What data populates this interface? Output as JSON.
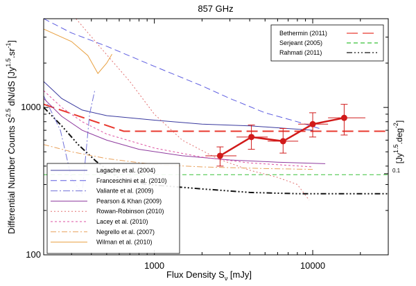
{
  "chart_data": {
    "type": "line",
    "title": "857 GHz",
    "xlabel": {
      "main": "Flux Density S",
      "sub": "ν",
      "unit": " [mJy]"
    },
    "ylabel": "Differential Number Counts S^2.5 dN/dS [Jy^1.5.sr^-1]",
    "ylabel_parts": {
      "main": "Differential Number Counts S",
      "sup1": "2.5",
      "mid": " dN/dS [Jy",
      "sup2": "1.5",
      "mid2": ".sr",
      "sup3": "-1",
      "end": "]"
    },
    "right_ylabel_parts": {
      "a": "[Jy",
      "sup1": "1.5",
      "b": ".deg",
      "sup2": "-2",
      "c": "]"
    },
    "right_tick": "0.1",
    "x_scale": "log",
    "y_scale": "log",
    "xlim": [
      200,
      30000
    ],
    "ylim": [
      100,
      4000
    ],
    "x_ticks": [
      {
        "value": 1000,
        "label": "1000"
      },
      {
        "value": 10000,
        "label": "10000"
      }
    ],
    "y_ticks": [
      {
        "value": 100,
        "label": "100"
      },
      {
        "value": 1000,
        "label": "1000"
      }
    ],
    "right_tick_value": 355,
    "measured": {
      "name": "data",
      "color": "#d11a1a",
      "points": [
        {
          "x": 2600,
          "y": 470,
          "yerr": [
            400,
            540
          ],
          "xerr": [
            2100,
            3300
          ]
        },
        {
          "x": 4100,
          "y": 630,
          "yerr": [
            520,
            760
          ],
          "xerr": [
            3300,
            5200
          ]
        },
        {
          "x": 6500,
          "y": 590,
          "yerr": [
            490,
            720
          ],
          "xerr": [
            5200,
            8100
          ]
        },
        {
          "x": 10000,
          "y": 770,
          "yerr": [
            630,
            920
          ],
          "xerr": [
            8100,
            12500
          ]
        },
        {
          "x": 15800,
          "y": 850,
          "yerr": [
            650,
            1050
          ],
          "xerr": [
            12500,
            21500
          ]
        }
      ]
    },
    "series": [
      {
        "name": "Bethermin (2011)",
        "color": "#e8382e",
        "dash": "16,7",
        "width": 2,
        "legend": "top",
        "points": [
          [
            200,
            1050
          ],
          [
            640,
            690
          ],
          [
            30000,
            690
          ]
        ]
      },
      {
        "name": "Serjeant (2005)",
        "color": "#38c038",
        "dash": "6,4",
        "width": 1,
        "legend": "top",
        "points": [
          [
            200,
            350
          ],
          [
            30000,
            350
          ]
        ]
      },
      {
        "name": "Rahmati (2011)",
        "color": "#111111",
        "dash": "8,3,2,3,2,3,2,3",
        "width": 2,
        "legend": "top",
        "points": [
          [
            200,
            1000
          ],
          [
            260,
            750
          ],
          [
            330,
            560
          ],
          [
            430,
            430
          ],
          [
            600,
            330
          ],
          [
            900,
            300
          ],
          [
            2000,
            280
          ],
          [
            4000,
            265
          ],
          [
            8000,
            260
          ],
          [
            30000,
            260
          ]
        ]
      },
      {
        "name": "Lagache et al. (2004)",
        "color": "#38389e",
        "dash": "",
        "width": 1,
        "legend": "bottom",
        "points": [
          [
            200,
            1500
          ],
          [
            260,
            1150
          ],
          [
            350,
            960
          ],
          [
            500,
            880
          ],
          [
            1000,
            820
          ],
          [
            2000,
            770
          ],
          [
            4000,
            750
          ],
          [
            10000,
            700
          ]
        ]
      },
      {
        "name": "Franceschini et al. (2010)",
        "color": "#5b5be0",
        "dash": "9,5",
        "width": 1,
        "legend": "bottom",
        "points": [
          [
            200,
            4000
          ],
          [
            300,
            3200
          ],
          [
            500,
            2600
          ],
          [
            1000,
            1900
          ],
          [
            2000,
            1400
          ],
          [
            3000,
            1150
          ],
          [
            5000,
            920
          ],
          [
            8000,
            800
          ],
          [
            11000,
            720
          ]
        ]
      },
      {
        "name": "Valiante et al. (2009)",
        "color": "#7070d8",
        "dash": "10,3,2,3",
        "width": 1,
        "legend": "bottom",
        "points": [
          [
            200,
            1200
          ],
          [
            255,
            700
          ],
          [
            300,
            330
          ],
          [
            350,
            260
          ],
          [
            390,
            900
          ],
          [
            420,
            1300
          ]
        ]
      },
      {
        "name": "Pearson & Khan (2009)",
        "color": "#8e3a9e",
        "dash": "",
        "width": 1,
        "legend": "bottom",
        "points": [
          [
            200,
            1150
          ],
          [
            260,
            870
          ],
          [
            350,
            700
          ],
          [
            500,
            600
          ],
          [
            800,
            520
          ],
          [
            1500,
            470
          ],
          [
            3000,
            440
          ],
          [
            6000,
            425
          ],
          [
            12000,
            415
          ]
        ]
      },
      {
        "name": "Rowan-Robinson (2010)",
        "color": "#e27070",
        "dash": "2,3",
        "width": 1,
        "legend": "bottom",
        "points": [
          [
            320,
            4000
          ],
          [
            450,
            2600
          ],
          [
            700,
            1500
          ],
          [
            1000,
            900
          ],
          [
            1500,
            600
          ],
          [
            2500,
            450
          ],
          [
            4000,
            375
          ],
          [
            6000,
            335
          ],
          [
            8000,
            300
          ],
          [
            9500,
            235
          ]
        ]
      },
      {
        "name": "Lacey et al. (2010)",
        "color": "#dd4fa0",
        "dash": "3,3",
        "width": 1,
        "legend": "bottom",
        "points": [
          [
            200,
            1300
          ],
          [
            260,
            1000
          ],
          [
            350,
            800
          ],
          [
            500,
            660
          ],
          [
            1000,
            530
          ],
          [
            2000,
            460
          ],
          [
            4000,
            420
          ],
          [
            10000,
            395
          ]
        ]
      },
      {
        "name": "Negrello et al. (2007)",
        "color": "#e8a05a",
        "dash": "8,3,2,3",
        "width": 1,
        "legend": "bottom",
        "points": [
          [
            200,
            560
          ],
          [
            300,
            500
          ],
          [
            500,
            450
          ],
          [
            1000,
            410
          ],
          [
            2000,
            395
          ],
          [
            5000,
            385
          ],
          [
            10000,
            380
          ]
        ]
      },
      {
        "name": "Wilman et al. (2010)",
        "color": "#e8a040",
        "dash": "",
        "width": 1,
        "legend": "bottom",
        "points": [
          [
            200,
            3400
          ],
          [
            300,
            2800
          ],
          [
            380,
            2250
          ],
          [
            440,
            1700
          ],
          [
            500,
            2000
          ],
          [
            540,
            2300
          ]
        ]
      }
    ]
  }
}
